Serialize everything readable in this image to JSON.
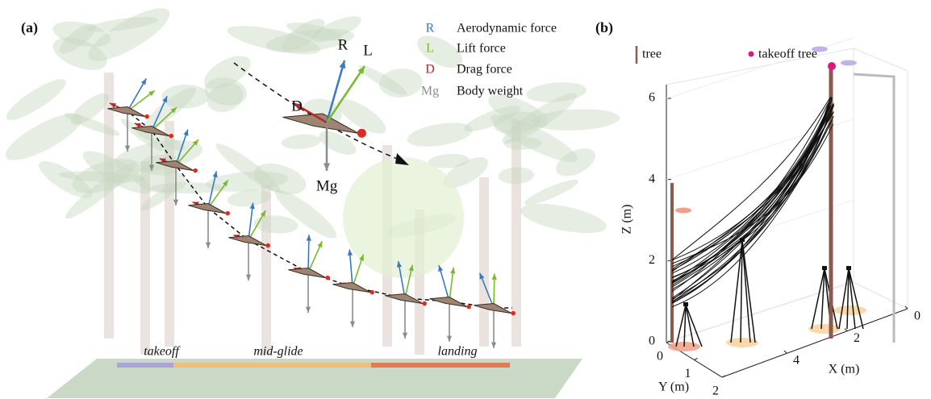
{
  "panel_a": {
    "label": "(a)",
    "legend": [
      {
        "symbol": "R",
        "text": "Aerodynamic force",
        "color": "#3a78c0"
      },
      {
        "symbol": "L",
        "text": "Lift force",
        "color": "#7ab82f"
      },
      {
        "symbol": "D",
        "text": "Drag force",
        "color": "#b5282e"
      },
      {
        "symbol": "Mg",
        "text": "Body weight",
        "color": "#8c8c8c"
      }
    ],
    "force_labels": [
      "R",
      "L",
      "D",
      "Mg"
    ],
    "phases": [
      "takeoff",
      "mid-glide",
      "landing"
    ]
  },
  "panel_b": {
    "label": "(b)",
    "legend": [
      "tree",
      "takeoff tree"
    ],
    "z_axis": {
      "label": "Z (m)",
      "ticks": [
        0,
        2,
        4,
        6
      ]
    },
    "y_axis": {
      "label": "Y (m)",
      "ticks": [
        0,
        1,
        2
      ]
    },
    "x_axis": {
      "label": "X (m)",
      "ticks": [
        0,
        2,
        4
      ]
    }
  }
}
